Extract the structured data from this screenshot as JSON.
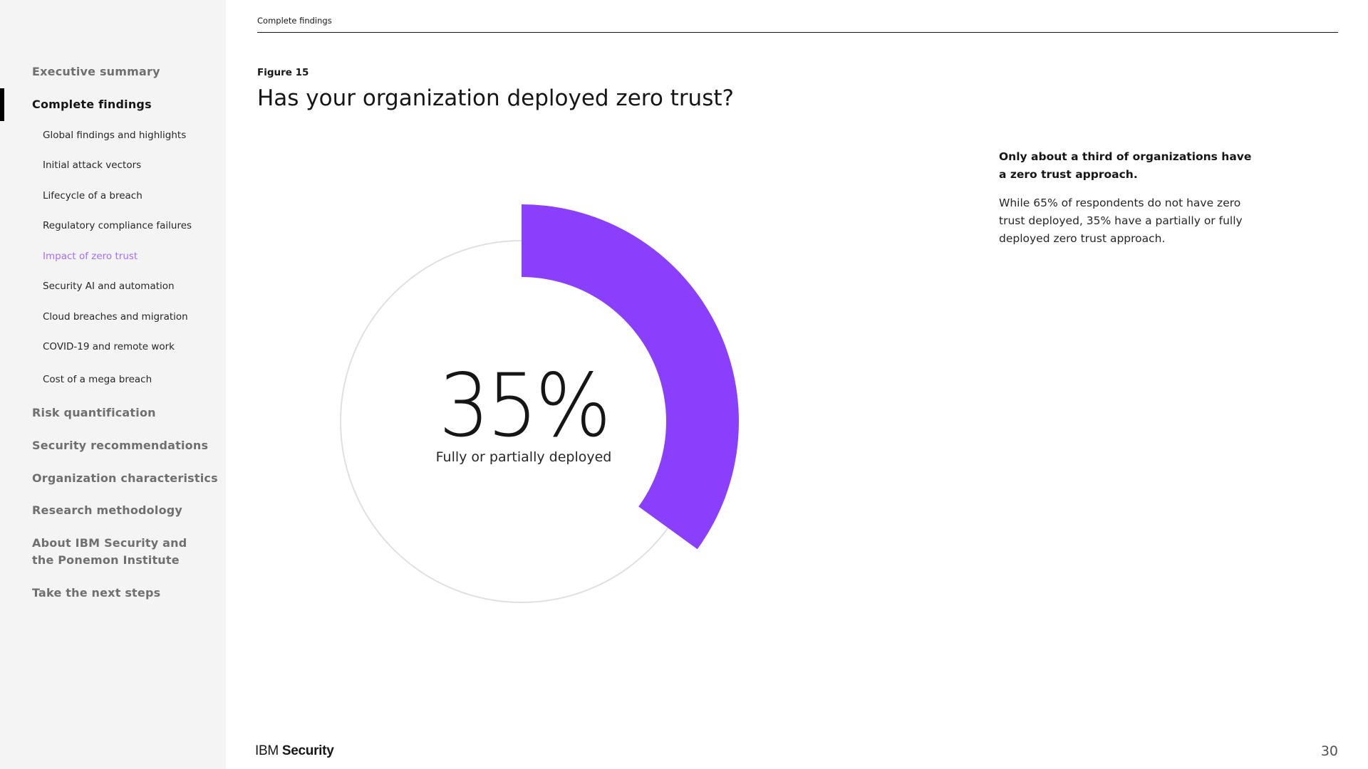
{
  "header": {
    "section_label": "Complete findings"
  },
  "sidebar": {
    "items": [
      {
        "label": "Executive summary"
      },
      {
        "label": "Complete findings"
      },
      {
        "label": "Risk quantification"
      },
      {
        "label": "Security recommendations"
      },
      {
        "label": "Organization characteristics"
      },
      {
        "label": "Research methodology"
      },
      {
        "label": "About IBM Security and the Ponemon Institute"
      },
      {
        "label": "Take the next steps"
      }
    ],
    "subitems": [
      {
        "label": "Global findings and highlights"
      },
      {
        "label": "Initial attack vectors"
      },
      {
        "label": "Lifecycle of a breach"
      },
      {
        "label": "Regulatory compliance failures"
      },
      {
        "label": "Impact of zero trust"
      },
      {
        "label": "Security AI and automation"
      },
      {
        "label": "Cloud breaches and migration"
      },
      {
        "label": "COVID-19 and remote work"
      },
      {
        "label": "Cost of a mega breach"
      }
    ],
    "current_subitem": "Impact of zero trust"
  },
  "figure": {
    "label": "Figure 15",
    "title": "Has your organization deployed zero trust?"
  },
  "chart_data": {
    "type": "pie",
    "value_label": "35%",
    "caption": "Fully or partially deployed",
    "slices": [
      {
        "label": "Fully or partially deployed",
        "value": 35,
        "color": "#8a3ffc"
      },
      {
        "value": 65,
        "color": "#e0e0e0"
      }
    ]
  },
  "note": {
    "heading_line1": "Only about a third of organizations have",
    "heading_line2": "a zero trust approach.",
    "body": "While 65% of respondents do not have zero trust deployed, 35% have a partially or fully deployed zero trust approach."
  },
  "footer": {
    "logo_prefix": "IBM",
    "logo_suffix": "Security",
    "page_number": "30"
  },
  "colors": {
    "accent": "#8a3ffc",
    "current_nav": "#a56eff",
    "track": "#e0e0e0"
  }
}
